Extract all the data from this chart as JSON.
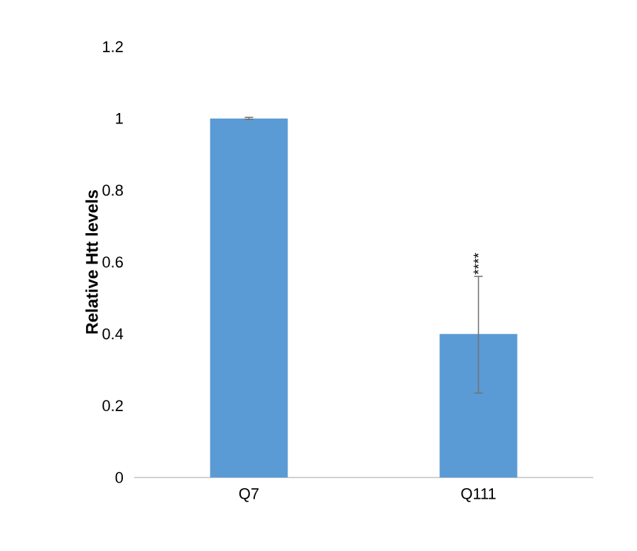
{
  "chart_data": {
    "type": "bar",
    "ylabel": "Relative Htt levels",
    "categories": [
      "Q7",
      "Q111"
    ],
    "values": [
      1.0,
      0.4
    ],
    "errors": [
      [
        0.997,
        1.003
      ],
      [
        0.235,
        0.56
      ]
    ],
    "color": "#5b9bd5",
    "ylim": [
      0,
      1.2
    ],
    "yticks": [
      0,
      0.2,
      0.4,
      0.6,
      0.8,
      1,
      1.2
    ],
    "annotations": [
      "****"
    ]
  }
}
